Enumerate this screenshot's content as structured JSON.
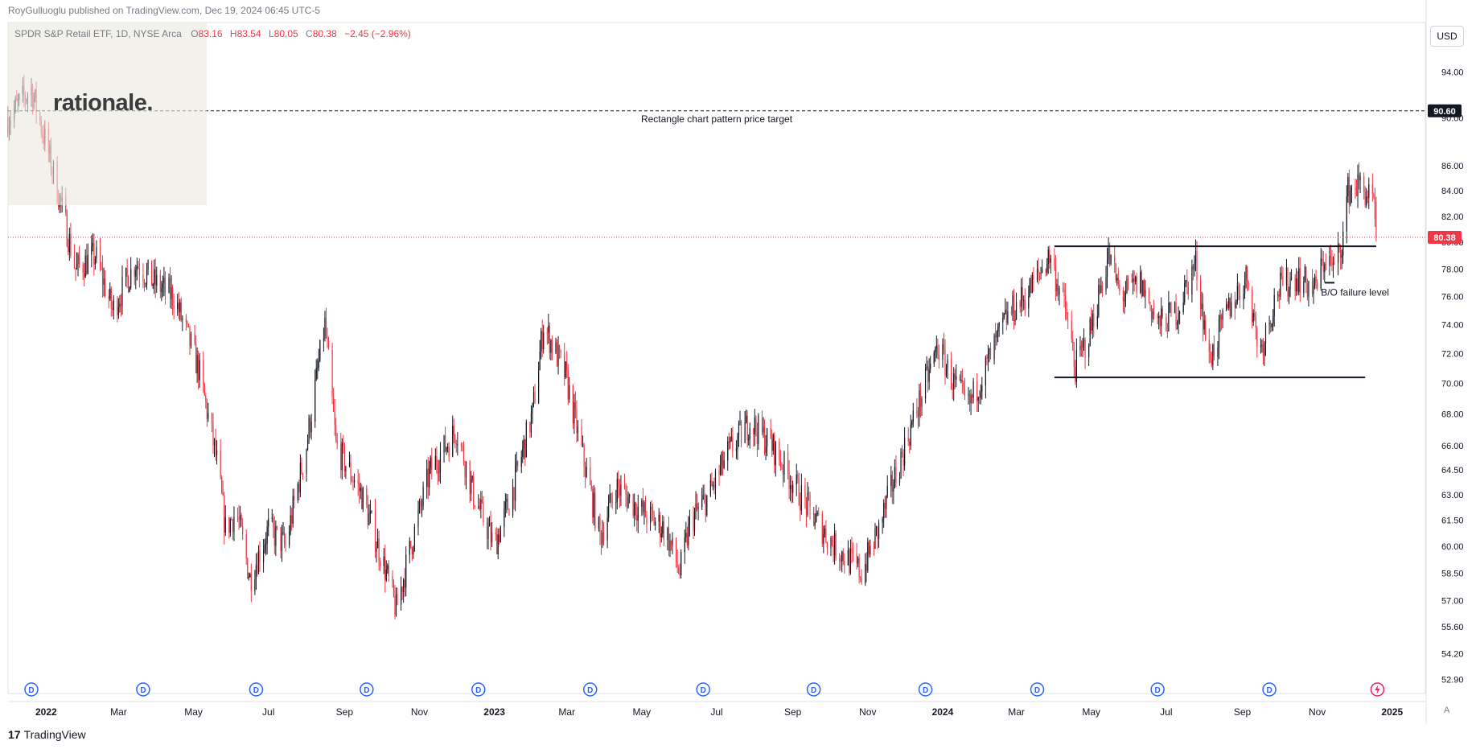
{
  "header": {
    "published": "RoyGulluoglu published on TradingView.com, Dec 19, 2024 06:45 UTC-5"
  },
  "legend": {
    "name": "SPDR S&P Retail ETF, 1D, NYSE Arca",
    "o_label": "O",
    "o": "83.16",
    "h_label": "H",
    "h": "83.54",
    "l_label": "L",
    "l": "80.05",
    "c_label": "C",
    "c": "80.38",
    "change": "−2.45 (−2.96%)"
  },
  "currency_button": "USD",
  "watermark": "rationale.",
  "footer": {
    "brand": "TradingView",
    "logo": "17"
  },
  "auto_label": "A",
  "colors": {
    "up": "#131722",
    "down": "#f23645",
    "last_price": "#f23645",
    "target": "#131722",
    "dividend_badge": "#2962ff"
  },
  "chart_data": {
    "type": "candlestick",
    "symbol": "SPDR S&P Retail ETF",
    "interval": "1D",
    "exchange": "NYSE Arca",
    "y_scale": "log",
    "ylim": [
      52.2,
      98.5
    ],
    "y_ticks": [
      "94.00",
      "90.00",
      "86.00",
      "84.00",
      "82.00",
      "80.00",
      "78.00",
      "76.00",
      "74.00",
      "72.00",
      "70.00",
      "68.00",
      "66.00",
      "64.50",
      "63.00",
      "61.50",
      "60.00",
      "58.50",
      "57.00",
      "55.60",
      "54.20",
      "52.90"
    ],
    "x_ticks": [
      {
        "label": "2022",
        "date": "2022-01-01",
        "bold": true
      },
      {
        "label": "Mar",
        "date": "2022-03-01"
      },
      {
        "label": "May",
        "date": "2022-05-01"
      },
      {
        "label": "Jul",
        "date": "2022-07-01"
      },
      {
        "label": "Sep",
        "date": "2022-09-01"
      },
      {
        "label": "Nov",
        "date": "2022-11-01"
      },
      {
        "label": "2023",
        "date": "2023-01-01",
        "bold": true
      },
      {
        "label": "Mar",
        "date": "2023-03-01"
      },
      {
        "label": "May",
        "date": "2023-05-01"
      },
      {
        "label": "Jul",
        "date": "2023-07-01"
      },
      {
        "label": "Sep",
        "date": "2023-09-01"
      },
      {
        "label": "Nov",
        "date": "2023-11-01"
      },
      {
        "label": "2024",
        "date": "2024-01-01",
        "bold": true
      },
      {
        "label": "Mar",
        "date": "2024-03-01"
      },
      {
        "label": "May",
        "date": "2024-05-01"
      },
      {
        "label": "Jul",
        "date": "2024-07-01"
      },
      {
        "label": "Sep",
        "date": "2024-09-01"
      },
      {
        "label": "Nov",
        "date": "2024-11-01"
      },
      {
        "label": "2025",
        "date": "2025-01-01",
        "bold": true
      }
    ],
    "price_path": [
      [
        "2021-12-01",
        90
      ],
      [
        "2021-12-20",
        92.5
      ],
      [
        "2022-01-08",
        85
      ],
      [
        "2022-01-25",
        78
      ],
      [
        "2022-02-10",
        79
      ],
      [
        "2022-02-24",
        75
      ],
      [
        "2022-03-15",
        78.5
      ],
      [
        "2022-03-30",
        77
      ],
      [
        "2022-04-15",
        76
      ],
      [
        "2022-05-05",
        71
      ],
      [
        "2022-05-20",
        65
      ],
      [
        "2022-05-27",
        61
      ],
      [
        "2022-06-05",
        62
      ],
      [
        "2022-06-16",
        58.2
      ],
      [
        "2022-07-01",
        61
      ],
      [
        "2022-07-15",
        60
      ],
      [
        "2022-08-01",
        66
      ],
      [
        "2022-08-16",
        74
      ],
      [
        "2022-08-25",
        66
      ],
      [
        "2022-09-15",
        63
      ],
      [
        "2022-10-05",
        58.5
      ],
      [
        "2022-10-13",
        56.5
      ],
      [
        "2022-10-25",
        60
      ],
      [
        "2022-11-10",
        64.5
      ],
      [
        "2022-12-01",
        67
      ],
      [
        "2022-12-15",
        63
      ],
      [
        "2023-01-01",
        60
      ],
      [
        "2023-01-15",
        63
      ],
      [
        "2023-02-01",
        68
      ],
      [
        "2023-02-10",
        74
      ],
      [
        "2023-02-28",
        70.5
      ],
      [
        "2023-03-12",
        66
      ],
      [
        "2023-03-28",
        60.5
      ],
      [
        "2023-04-10",
        63.5
      ],
      [
        "2023-05-01",
        62
      ],
      [
        "2023-05-20",
        61
      ],
      [
        "2023-06-01",
        58.5
      ],
      [
        "2023-06-10",
        61.5
      ],
      [
        "2023-06-25",
        63
      ],
      [
        "2023-07-10",
        65.5
      ],
      [
        "2023-07-28",
        67.5
      ],
      [
        "2023-08-15",
        66
      ],
      [
        "2023-08-30",
        64
      ],
      [
        "2023-09-15",
        62
      ],
      [
        "2023-10-05",
        60
      ],
      [
        "2023-10-20",
        59
      ],
      [
        "2023-10-27",
        58.5
      ],
      [
        "2023-11-10",
        61
      ],
      [
        "2023-11-25",
        64.5
      ],
      [
        "2023-12-10",
        68
      ],
      [
        "2023-12-28",
        72.5
      ],
      [
        "2024-01-10",
        70
      ],
      [
        "2024-01-22",
        68.5
      ],
      [
        "2024-02-05",
        71
      ],
      [
        "2024-02-22",
        74.5
      ],
      [
        "2024-03-12",
        76.5
      ],
      [
        "2024-03-28",
        79
      ],
      [
        "2024-04-10",
        75
      ],
      [
        "2024-04-18",
        71
      ],
      [
        "2024-04-30",
        73.5
      ],
      [
        "2024-05-15",
        79
      ],
      [
        "2024-05-25",
        76
      ],
      [
        "2024-06-10",
        77
      ],
      [
        "2024-06-25",
        74
      ],
      [
        "2024-07-10",
        75
      ],
      [
        "2024-07-25",
        78.5
      ],
      [
        "2024-08-05",
        71.5
      ],
      [
        "2024-08-20",
        75
      ],
      [
        "2024-09-05",
        77.5
      ],
      [
        "2024-09-15",
        72
      ],
      [
        "2024-09-30",
        76.5
      ],
      [
        "2024-10-15",
        77.5
      ],
      [
        "2024-10-30",
        76.5
      ],
      [
        "2024-11-08",
        79
      ],
      [
        "2024-11-15",
        78
      ],
      [
        "2024-11-22",
        80.5
      ],
      [
        "2024-11-26",
        84
      ],
      [
        "2024-12-05",
        84.5
      ],
      [
        "2024-12-16",
        83.2
      ],
      [
        "2024-12-19",
        80.38
      ]
    ],
    "last_bar": {
      "date": "2024-12-19",
      "open": 83.16,
      "high": 83.54,
      "low": 80.05,
      "close": 80.38,
      "change": -2.45,
      "change_pct": -2.96
    },
    "last_price_label": "80.38",
    "annotations": [
      {
        "type": "hline",
        "style": "dashed",
        "y": 90.6,
        "label": "90.60",
        "text": "Rectangle chart pattern price target"
      },
      {
        "type": "segment",
        "y": 79.7,
        "x_start": "2024-04-01",
        "x_end": "2024-12-19"
      },
      {
        "type": "segment",
        "y": 70.4,
        "x_start": "2024-04-01",
        "x_end": "2024-12-10"
      },
      {
        "type": "segment",
        "y": 77.0,
        "x_start": "2024-11-07",
        "x_end": "2024-11-15"
      },
      {
        "type": "text",
        "y": 76.3,
        "x": "2024-11-04",
        "text": "B/O failure level"
      }
    ],
    "dividend_markers": [
      "2021-12-20",
      "2022-03-21",
      "2022-06-21",
      "2022-09-19",
      "2022-12-19",
      "2023-03-20",
      "2023-06-20",
      "2023-09-18",
      "2023-12-18",
      "2024-03-18",
      "2024-06-24",
      "2024-09-23"
    ],
    "dividend_label": "D",
    "lightning_marker": "2024-12-20"
  }
}
